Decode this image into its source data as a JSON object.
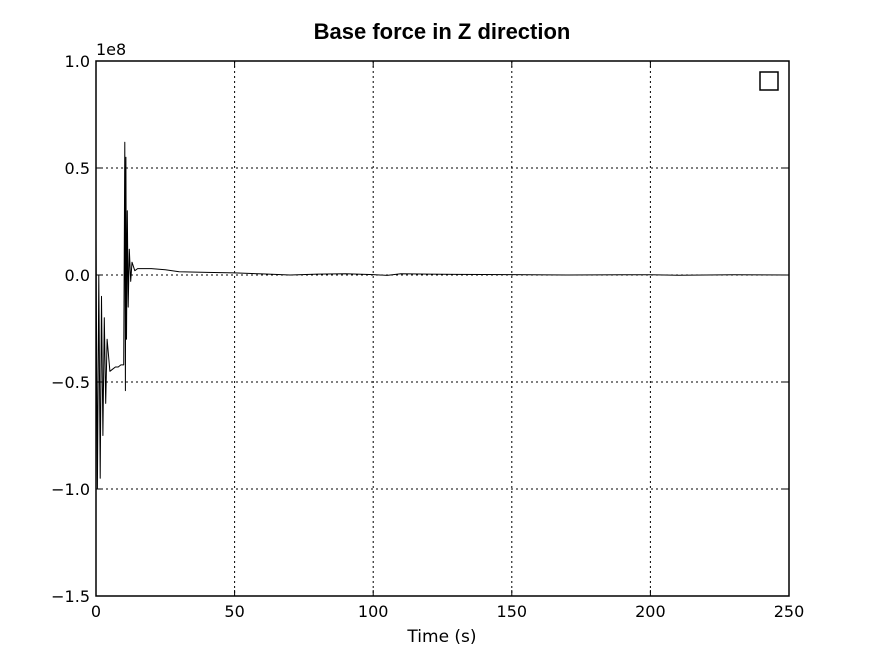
{
  "chart_data": {
    "type": "line",
    "title": "Base force in Z direction",
    "xlabel": "Time (s)",
    "ylabel": "",
    "xlim": [
      0,
      250
    ],
    "ylim": [
      -1.5,
      1.0
    ],
    "y_offset_label": "1e8",
    "x_ticks": [
      0,
      50,
      100,
      150,
      200,
      250
    ],
    "y_ticks": [
      -1.5,
      -1.0,
      -0.5,
      0.0,
      0.5,
      1.0
    ],
    "x_tick_labels": [
      "0",
      "50",
      "100",
      "150",
      "200",
      "250"
    ],
    "y_tick_labels": [
      "−1.5",
      "−1.0",
      "−0.5",
      "0.0",
      "0.5",
      "1.0"
    ],
    "grid": true,
    "legend": "top-right (empty)",
    "line_color": "#000000",
    "series": [
      {
        "x": [
          0,
          0.5,
          1,
          1.5,
          2,
          2.5,
          3,
          3.5,
          4,
          5,
          6,
          7,
          8,
          9,
          10,
          10.4,
          10.6,
          10.8,
          11,
          11.3,
          11.6,
          12,
          12.5,
          13,
          14,
          15,
          17,
          20,
          25,
          30,
          40,
          50,
          60,
          70,
          80,
          90,
          100,
          105,
          110,
          120,
          130,
          150,
          170,
          190,
          200,
          210,
          230,
          250
        ],
        "y": [
          0.17,
          -1.0,
          0.0,
          -0.95,
          -0.1,
          -0.75,
          -0.2,
          -0.6,
          -0.3,
          -0.45,
          -0.44,
          -0.43,
          -0.43,
          -0.42,
          -0.42,
          0.62,
          -0.54,
          0.55,
          -0.3,
          0.3,
          -0.15,
          0.12,
          -0.03,
          0.06,
          0.02,
          0.03,
          0.03,
          0.03,
          0.025,
          0.015,
          0.012,
          0.01,
          0.005,
          0.0,
          0.004,
          0.006,
          0.002,
          -0.002,
          0.006,
          0.004,
          0.003,
          0.002,
          0.0,
          0.001,
          0.001,
          -0.001,
          0.001,
          0.0
        ]
      }
    ]
  }
}
